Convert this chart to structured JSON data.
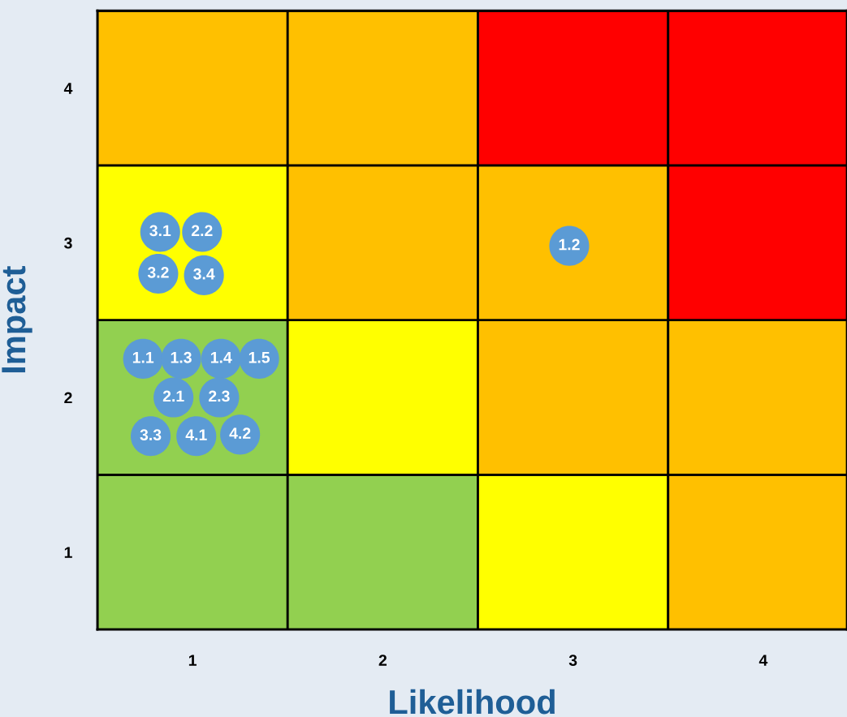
{
  "chart_data": {
    "type": "scatter",
    "xlabel": "Likelihood",
    "ylabel": "Impact",
    "xlim": [
      0.5,
      4.44
    ],
    "ylim": [
      0.5,
      4.5
    ],
    "xticks": [
      1,
      2,
      3,
      4
    ],
    "yticks": [
      1,
      2,
      3,
      4
    ],
    "series": [
      {
        "color": "#5b9bd5",
        "x": [
          0.83,
          1.05,
          0.82,
          1.06,
          2.98,
          0.74,
          0.94,
          1.15,
          1.35,
          0.9,
          1.14,
          0.78,
          1.02,
          1.25
        ],
        "values": [
          3.07,
          3.07,
          2.8,
          2.79,
          2.98,
          2.25,
          2.25,
          2.25,
          2.25,
          2.0,
          2.0,
          1.75,
          1.75,
          1.76
        ]
      }
    ],
    "annotations": [
      {
        "text": "3.1",
        "x": 0.83,
        "y": 3.07
      },
      {
        "text": "2.2",
        "x": 1.05,
        "y": 3.07
      },
      {
        "text": "3.2",
        "x": 0.82,
        "y": 2.8
      },
      {
        "text": "3.4",
        "x": 1.06,
        "y": 2.79
      },
      {
        "text": "1.2",
        "x": 2.98,
        "y": 2.98
      },
      {
        "text": "1.1",
        "x": 0.74,
        "y": 2.25
      },
      {
        "text": "1.3",
        "x": 0.94,
        "y": 2.25
      },
      {
        "text": "1.4",
        "x": 1.15,
        "y": 2.25
      },
      {
        "text": "1.5",
        "x": 1.35,
        "y": 2.25
      },
      {
        "text": "2.1",
        "x": 0.9,
        "y": 2.0
      },
      {
        "text": "2.3",
        "x": 1.14,
        "y": 2.0
      },
      {
        "text": "3.3",
        "x": 0.78,
        "y": 1.75
      },
      {
        "text": "4.1",
        "x": 1.02,
        "y": 1.75
      },
      {
        "text": "4.2",
        "x": 1.25,
        "y": 1.76
      }
    ]
  }
}
